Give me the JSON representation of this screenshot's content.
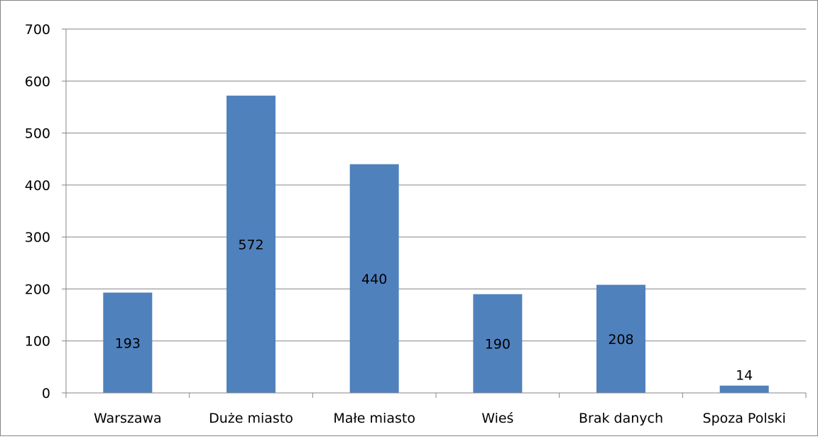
{
  "chart_data": {
    "type": "bar",
    "categories": [
      "Warszawa",
      "Duże miasto",
      "Małe miasto",
      "Wieś",
      "Brak danych",
      "Spoza Polski"
    ],
    "values": [
      193,
      572,
      440,
      190,
      208,
      14
    ],
    "data_labels": [
      "193",
      "572",
      "440",
      "190",
      "208",
      "14"
    ],
    "title": "",
    "xlabel": "",
    "ylabel": "",
    "ylim": [
      0,
      700
    ],
    "yticks": [
      "0",
      "100",
      "200",
      "300",
      "400",
      "500",
      "600",
      "700"
    ],
    "grid": "horizontal",
    "legend": "none",
    "bar_color": "#4F81BD",
    "grid_color": "#868686"
  }
}
